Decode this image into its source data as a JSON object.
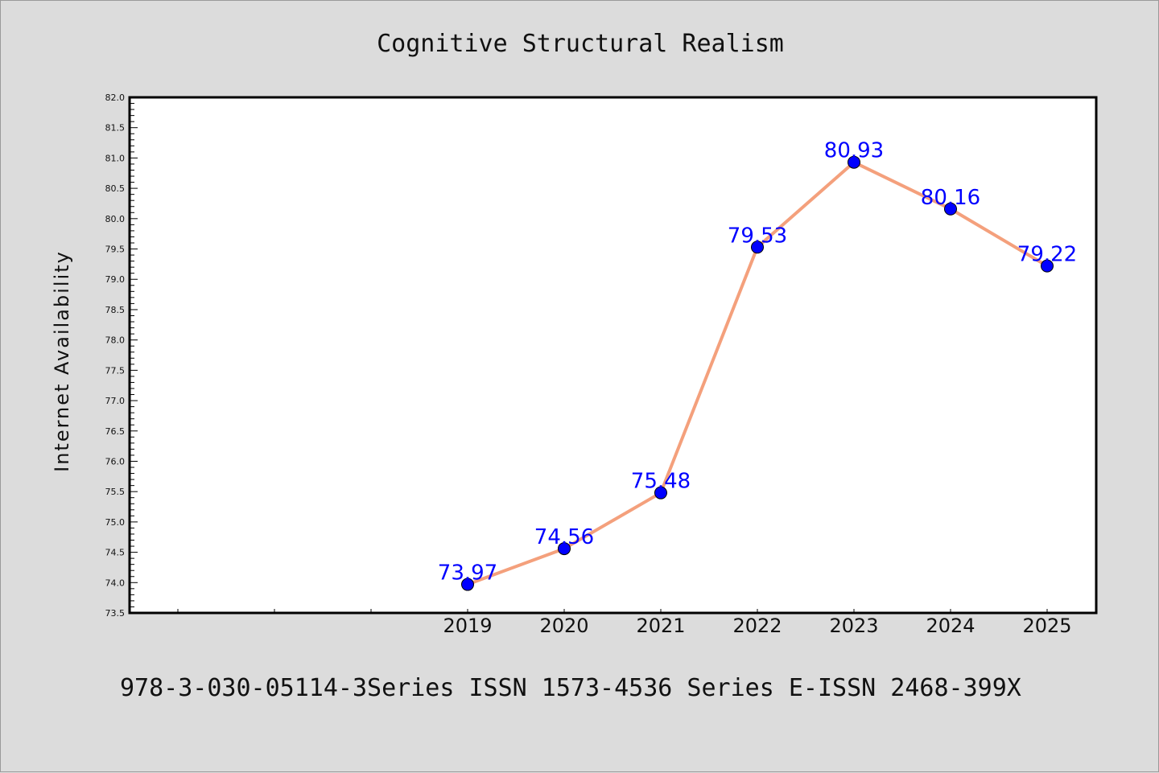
{
  "chart_data": {
    "type": "line",
    "title": "Cognitive Structural Realism",
    "xlabel": "",
    "ylabel": "Internet Availability",
    "categories": [
      "2019",
      "2020",
      "2021",
      "2022",
      "2023",
      "2024",
      "2025"
    ],
    "series": [
      {
        "values": [
          73.97,
          74.56,
          75.48,
          79.53,
          80.93,
          80.16,
          79.22
        ]
      }
    ],
    "data_labels": [
      "73.97",
      "74.56",
      "75.48",
      "79.53",
      "80.93",
      "80.16",
      "79.22"
    ],
    "ylim": [
      73.5,
      82.0
    ],
    "yticks": [
      "73.5",
      "74.0",
      "74.5",
      "75.0",
      "75.5",
      "76.0",
      "76.5",
      "77.0",
      "77.5",
      "78.0",
      "78.5",
      "79.0",
      "79.5",
      "80.0",
      "80.5",
      "81.0",
      "81.5",
      "82.0"
    ],
    "grid": false,
    "line_color": "#f4a07c",
    "marker_color": "#0000ff",
    "label_color": "#0000ff"
  },
  "footer": {
    "text": "978-3-030-05114-3Series ISSN 1573-4536 Series E-ISSN 2468-399X"
  }
}
